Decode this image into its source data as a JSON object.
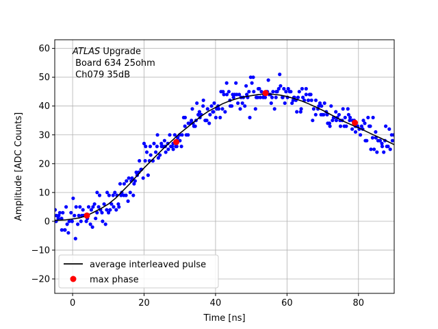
{
  "chart_data": {
    "type": "scatter",
    "title": "",
    "xlabel": "Time [ns]",
    "ylabel": "Amplitude [ADC Counts]",
    "xlim": [
      -5,
      90
    ],
    "ylim": [
      -25,
      63
    ],
    "xticks": [
      0,
      20,
      40,
      60,
      80
    ],
    "yticks": [
      -20,
      -10,
      0,
      10,
      20,
      30,
      40,
      50,
      60
    ],
    "grid": true,
    "legend_position": "lower-left",
    "annotation": {
      "experiment": "ATLAS",
      "suffix": " Upgrade",
      "line2": " Board 634 25ohm",
      "line3": " Ch079 35dB"
    },
    "series": [
      {
        "name": "average interleaved pulse",
        "kind": "line",
        "color": "#000000",
        "x": [
          -5,
          -2,
          0,
          2,
          4,
          6,
          8,
          10,
          12,
          14,
          16,
          18,
          20,
          22,
          24,
          26,
          28,
          30,
          32,
          34,
          36,
          38,
          40,
          42,
          44,
          46,
          48,
          50,
          52,
          54,
          56,
          58,
          60,
          62,
          64,
          66,
          68,
          70,
          72,
          74,
          76,
          78,
          80,
          82,
          84,
          86,
          88,
          90
        ],
        "y": [
          0.3,
          0.5,
          0.8,
          1.2,
          2.0,
          3.2,
          4.5,
          6.0,
          8.0,
          10.5,
          13.0,
          15.8,
          18.5,
          21.0,
          23.5,
          26.0,
          28.2,
          30.5,
          32.5,
          34.5,
          36.5,
          38.2,
          39.5,
          40.8,
          41.8,
          42.6,
          43.2,
          43.6,
          44.0,
          44.2,
          44.1,
          43.8,
          43.3,
          42.6,
          41.8,
          40.8,
          39.7,
          38.5,
          37.2,
          35.9,
          34.6,
          33.5,
          32.5,
          31.3,
          30.1,
          29.0,
          27.8,
          26.6
        ]
      },
      {
        "name": "max phase",
        "kind": "markers",
        "color": "#ff0000",
        "x": [
          4,
          29,
          54,
          79
        ],
        "y": [
          2,
          27.5,
          44.5,
          34.2
        ]
      },
      {
        "name": "",
        "kind": "scatter",
        "color": "#0000ff",
        "note_generation": "points scattered around average pulse",
        "x_step": 0.3,
        "x_start": -5,
        "x_end": 90,
        "noise_amplitude": 5.5,
        "seed": 634
      }
    ]
  }
}
